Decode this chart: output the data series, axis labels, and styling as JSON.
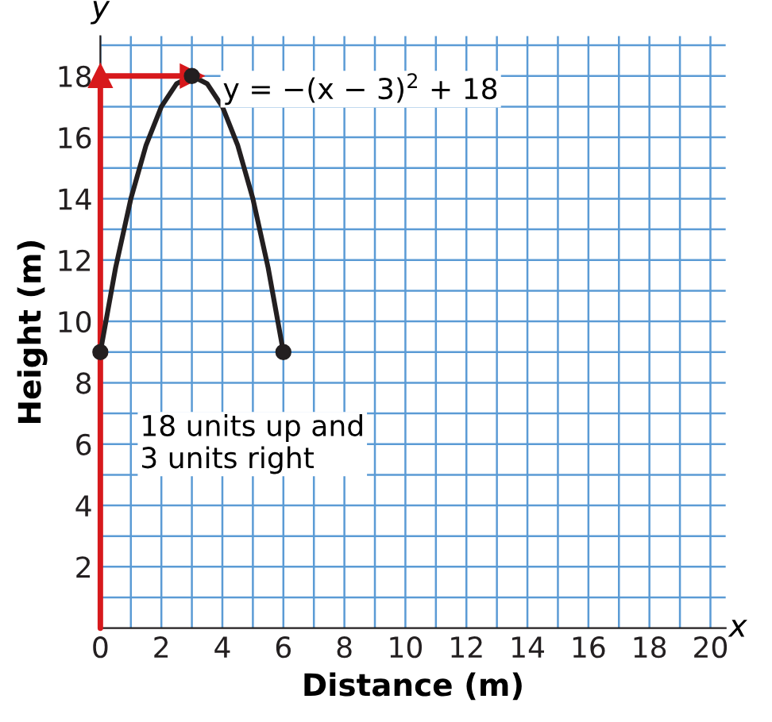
{
  "chart_data": {
    "type": "line",
    "xlabel": "Distance (m)",
    "ylabel": "Height (m)",
    "xlim": [
      0,
      20.5
    ],
    "ylim": [
      0,
      19.3
    ],
    "xticks": [
      0,
      {
        "value": 1,
        "label": null
      },
      2,
      {
        "value": 3,
        "label": null
      },
      4,
      {
        "value": 5,
        "label": null
      },
      6,
      {
        "value": 7,
        "label": null
      },
      8,
      {
        "value": 9,
        "label": null
      },
      10,
      {
        "value": 11,
        "label": null
      },
      12,
      {
        "value": 13,
        "label": null
      },
      14,
      {
        "value": 15,
        "label": null
      },
      16,
      {
        "value": 17,
        "label": null
      },
      18,
      {
        "value": 19,
        "label": null
      },
      20
    ],
    "yticks": [
      {
        "value": 1,
        "label": null
      },
      2,
      {
        "value": 3,
        "label": null
      },
      4,
      {
        "value": 5,
        "label": null
      },
      6,
      {
        "value": 7,
        "label": null
      },
      8,
      {
        "value": 9,
        "label": null
      },
      10,
      {
        "value": 11,
        "label": null
      },
      12,
      {
        "value": 13,
        "label": null
      },
      14,
      {
        "value": 15,
        "label": null
      },
      16,
      {
        "value": 17,
        "label": null
      },
      18,
      {
        "value": 19,
        "label": null
      }
    ],
    "grid": true,
    "series": [
      {
        "type": "line",
        "color": "#d7191c",
        "x": [
          0,
          0
        ],
        "values": [
          0,
          18
        ],
        "marker": "triangle"
      },
      {
        "type": "line",
        "color": "#d7191c",
        "x": [
          0,
          3
        ],
        "values": [
          18,
          18
        ],
        "marker": "triangle"
      },
      {
        "color": "#231f20",
        "marker": "none",
        "x": [
          0,
          0.5,
          1,
          1.5,
          2,
          2.5,
          3,
          3.5,
          4,
          4.5,
          5,
          5.5,
          6
        ],
        "values": [
          9,
          11.75,
          14,
          15.75,
          17,
          17.75,
          18,
          17.75,
          17,
          15.75,
          14,
          11.75,
          9
        ]
      },
      {
        "type": "scatter",
        "color": "#231f20",
        "marker": "circle",
        "x": [
          0,
          3,
          6
        ],
        "values": [
          9,
          18,
          9
        ]
      }
    ],
    "annotations": [
      {
        "text": "y = −(x − 3)$^{2}$ + 18",
        "x": 3,
        "y": 18
      },
      "18 units up and\n3 units right",
      "x",
      "y"
    ]
  }
}
